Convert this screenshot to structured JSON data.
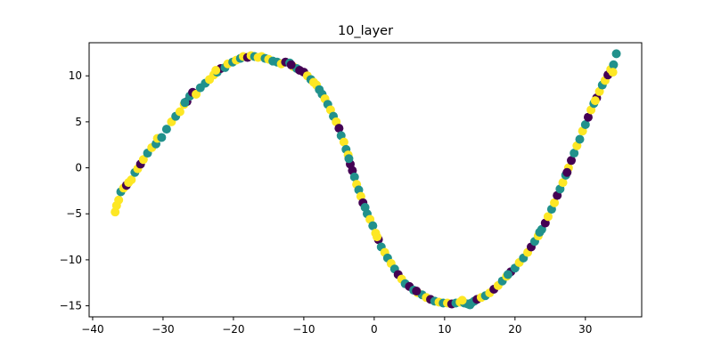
{
  "chart_data": {
    "type": "scatter",
    "title": "10_layer",
    "xlabel": "",
    "ylabel": "",
    "xlim": [
      -40.5,
      38.0
    ],
    "ylim": [
      -16.2,
      13.6
    ],
    "xticks": [
      -40,
      -30,
      -20,
      -10,
      0,
      10,
      20,
      30
    ],
    "yticks": [
      -15,
      -10,
      -5,
      0,
      5,
      10
    ],
    "grid": false,
    "legend": "none",
    "colors": {
      "purple": "#440154",
      "teal": "#21918c",
      "yellow": "#fde725"
    },
    "points": [
      [
        -36.8,
        -4.8,
        "yellow"
      ],
      [
        -36.6,
        -4.1,
        "yellow"
      ],
      [
        -36.3,
        -3.5,
        "yellow"
      ],
      [
        -36.0,
        -2.6,
        "teal"
      ],
      [
        -35.6,
        -2.2,
        "yellow"
      ],
      [
        -35.2,
        -1.9,
        "purple"
      ],
      [
        -34.9,
        -1.6,
        "yellow"
      ],
      [
        -34.5,
        -1.3,
        "yellow"
      ],
      [
        -34.0,
        -0.5,
        "teal"
      ],
      [
        -33.6,
        -0.1,
        "yellow"
      ],
      [
        -33.2,
        0.4,
        "purple"
      ],
      [
        -32.8,
        0.9,
        "yellow"
      ],
      [
        -32.2,
        1.6,
        "teal"
      ],
      [
        -31.6,
        2.2,
        "yellow"
      ],
      [
        -31.0,
        2.6,
        "teal"
      ],
      [
        -30.8,
        3.2,
        "yellow"
      ],
      [
        -30.2,
        3.3,
        "teal"
      ],
      [
        -29.5,
        4.2,
        "teal"
      ],
      [
        -28.8,
        5.0,
        "yellow"
      ],
      [
        -28.2,
        5.6,
        "teal"
      ],
      [
        -27.6,
        6.1,
        "yellow"
      ],
      [
        -27.0,
        6.9,
        "yellow"
      ],
      [
        -26.6,
        7.2,
        "purple"
      ],
      [
        -26.2,
        7.8,
        "teal"
      ],
      [
        -25.8,
        8.2,
        "purple"
      ],
      [
        -25.3,
        8.0,
        "yellow"
      ],
      [
        -24.7,
        8.7,
        "teal"
      ],
      [
        -24.0,
        9.2,
        "teal"
      ],
      [
        -23.4,
        9.6,
        "yellow"
      ],
      [
        -22.8,
        10.1,
        "yellow"
      ],
      [
        -22.3,
        10.4,
        "teal"
      ],
      [
        -21.8,
        10.8,
        "purple"
      ],
      [
        -21.2,
        10.9,
        "teal"
      ],
      [
        -20.8,
        11.3,
        "yellow"
      ],
      [
        -20.1,
        11.5,
        "teal"
      ],
      [
        -19.6,
        11.7,
        "yellow"
      ],
      [
        -19.0,
        11.9,
        "teal"
      ],
      [
        -18.6,
        12.1,
        "yellow"
      ],
      [
        -18.0,
        12.0,
        "purple"
      ],
      [
        -17.5,
        12.2,
        "yellow"
      ],
      [
        -17.0,
        12.1,
        "teal"
      ],
      [
        -16.5,
        12.0,
        "yellow"
      ],
      [
        -16.0,
        12.1,
        "yellow"
      ],
      [
        -15.5,
        11.9,
        "teal"
      ],
      [
        -15.0,
        11.8,
        "yellow"
      ],
      [
        -14.4,
        11.6,
        "teal"
      ],
      [
        -13.8,
        11.5,
        "teal"
      ],
      [
        -13.2,
        11.3,
        "yellow"
      ],
      [
        -12.6,
        11.5,
        "purple"
      ],
      [
        -12.0,
        11.4,
        "teal"
      ],
      [
        -11.5,
        11.0,
        "yellow"
      ],
      [
        -11.0,
        10.8,
        "teal"
      ],
      [
        -10.6,
        10.6,
        "purple"
      ],
      [
        -10.0,
        10.4,
        "purple"
      ],
      [
        -9.5,
        10.0,
        "yellow"
      ],
      [
        -9.0,
        9.6,
        "teal"
      ],
      [
        -8.6,
        9.3,
        "yellow"
      ],
      [
        -8.2,
        9.0,
        "yellow"
      ],
      [
        -7.8,
        8.5,
        "teal"
      ],
      [
        -7.4,
        8.0,
        "teal"
      ],
      [
        -7.0,
        7.5,
        "yellow"
      ],
      [
        -6.6,
        6.9,
        "teal"
      ],
      [
        -6.2,
        6.3,
        "yellow"
      ],
      [
        -5.8,
        5.6,
        "teal"
      ],
      [
        -5.4,
        5.0,
        "yellow"
      ],
      [
        -5.0,
        4.3,
        "purple"
      ],
      [
        -4.7,
        3.5,
        "teal"
      ],
      [
        -4.3,
        2.8,
        "yellow"
      ],
      [
        -4.0,
        2.0,
        "teal"
      ],
      [
        -3.7,
        1.4,
        "yellow"
      ],
      [
        -3.4,
        0.4,
        "purple"
      ],
      [
        -3.1,
        -0.3,
        "purple"
      ],
      [
        -2.8,
        -1.0,
        "teal"
      ],
      [
        -2.5,
        -1.8,
        "yellow"
      ],
      [
        -2.2,
        -2.4,
        "teal"
      ],
      [
        -1.9,
        -3.1,
        "yellow"
      ],
      [
        -1.6,
        -3.8,
        "purple"
      ],
      [
        -1.3,
        -4.3,
        "teal"
      ],
      [
        -1.0,
        -5.0,
        "teal"
      ],
      [
        -0.6,
        -5.6,
        "yellow"
      ],
      [
        -0.2,
        -6.3,
        "teal"
      ],
      [
        0.2,
        -7.1,
        "yellow"
      ],
      [
        0.6,
        -7.8,
        "purple"
      ],
      [
        1.0,
        -8.6,
        "teal"
      ],
      [
        1.5,
        -9.2,
        "yellow"
      ],
      [
        1.9,
        -9.8,
        "teal"
      ],
      [
        2.4,
        -10.4,
        "yellow"
      ],
      [
        2.9,
        -11.0,
        "teal"
      ],
      [
        3.4,
        -11.6,
        "purple"
      ],
      [
        3.9,
        -12.1,
        "yellow"
      ],
      [
        4.4,
        -12.6,
        "teal"
      ],
      [
        5.0,
        -12.9,
        "purple"
      ],
      [
        5.6,
        -13.3,
        "teal"
      ],
      [
        6.2,
        -13.6,
        "yellow"
      ],
      [
        6.8,
        -13.8,
        "teal"
      ],
      [
        7.4,
        -14.1,
        "yellow"
      ],
      [
        8.0,
        -14.3,
        "purple"
      ],
      [
        8.6,
        -14.5,
        "teal"
      ],
      [
        9.2,
        -14.6,
        "yellow"
      ],
      [
        9.8,
        -14.7,
        "teal"
      ],
      [
        10.4,
        -14.7,
        "yellow"
      ],
      [
        11.0,
        -14.8,
        "purple"
      ],
      [
        11.6,
        -14.7,
        "teal"
      ],
      [
        12.2,
        -14.6,
        "yellow"
      ],
      [
        12.8,
        -14.7,
        "teal"
      ],
      [
        13.3,
        -14.8,
        "teal"
      ],
      [
        13.8,
        -14.7,
        "teal"
      ],
      [
        14.2,
        -14.5,
        "teal"
      ],
      [
        14.6,
        -14.3,
        "purple"
      ],
      [
        15.2,
        -14.1,
        "yellow"
      ],
      [
        15.8,
        -13.9,
        "teal"
      ],
      [
        16.4,
        -13.6,
        "yellow"
      ],
      [
        17.0,
        -13.2,
        "purple"
      ],
      [
        17.6,
        -12.8,
        "yellow"
      ],
      [
        18.2,
        -12.3,
        "teal"
      ],
      [
        18.8,
        -11.8,
        "yellow"
      ],
      [
        19.4,
        -11.3,
        "purple"
      ],
      [
        20.0,
        -10.9,
        "teal"
      ],
      [
        20.6,
        -10.3,
        "yellow"
      ],
      [
        21.2,
        -9.8,
        "teal"
      ],
      [
        21.8,
        -9.2,
        "yellow"
      ],
      [
        22.3,
        -8.6,
        "purple"
      ],
      [
        22.8,
        -8.0,
        "teal"
      ],
      [
        23.3,
        -7.4,
        "yellow"
      ],
      [
        23.8,
        -6.7,
        "teal"
      ],
      [
        24.3,
        -6.0,
        "purple"
      ],
      [
        24.7,
        -5.3,
        "yellow"
      ],
      [
        25.2,
        -4.5,
        "teal"
      ],
      [
        25.6,
        -3.8,
        "yellow"
      ],
      [
        26.0,
        -3.0,
        "purple"
      ],
      [
        26.4,
        -2.3,
        "teal"
      ],
      [
        26.8,
        -1.6,
        "yellow"
      ],
      [
        27.2,
        -0.8,
        "teal"
      ],
      [
        27.6,
        0.0,
        "yellow"
      ],
      [
        28.0,
        0.8,
        "purple"
      ],
      [
        28.4,
        1.6,
        "teal"
      ],
      [
        28.8,
        2.4,
        "yellow"
      ],
      [
        29.2,
        3.1,
        "teal"
      ],
      [
        29.6,
        4.0,
        "yellow"
      ],
      [
        30.0,
        4.7,
        "teal"
      ],
      [
        30.4,
        5.5,
        "purple"
      ],
      [
        30.8,
        6.3,
        "yellow"
      ],
      [
        31.2,
        7.0,
        "teal"
      ],
      [
        31.6,
        7.6,
        "purple"
      ],
      [
        32.0,
        8.3,
        "yellow"
      ],
      [
        32.4,
        9.0,
        "teal"
      ],
      [
        32.8,
        9.5,
        "yellow"
      ],
      [
        33.2,
        10.1,
        "purple"
      ],
      [
        33.6,
        10.7,
        "yellow"
      ],
      [
        34.0,
        11.2,
        "teal"
      ],
      [
        34.4,
        12.4,
        "teal"
      ],
      [
        33.9,
        10.4,
        "yellow"
      ],
      [
        -22.5,
        10.6,
        "yellow"
      ],
      [
        -26.9,
        7.1,
        "teal"
      ],
      [
        -11.8,
        11.2,
        "purple"
      ],
      [
        -3.6,
        1.0,
        "teal"
      ],
      [
        0.4,
        -7.5,
        "yellow"
      ],
      [
        6.0,
        -13.4,
        "purple"
      ],
      [
        12.5,
        -14.4,
        "yellow"
      ],
      [
        13.6,
        -14.9,
        "teal"
      ],
      [
        19.0,
        -11.6,
        "teal"
      ],
      [
        23.5,
        -7.0,
        "teal"
      ],
      [
        27.4,
        -0.5,
        "purple"
      ],
      [
        31.4,
        7.3,
        "yellow"
      ]
    ]
  }
}
